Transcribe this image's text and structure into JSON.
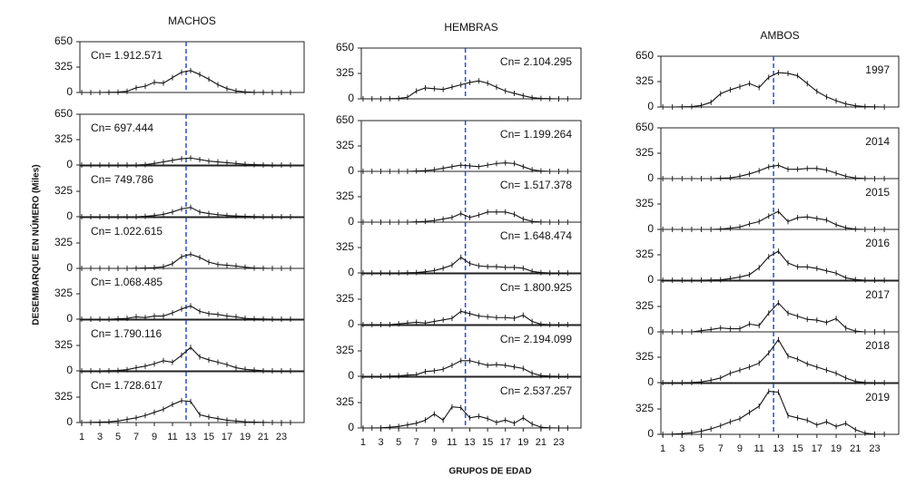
{
  "y_label": "DESEMBARQUE EN NÚMERO (Miles)",
  "x_label": "GRUPOS DE EDAD",
  "chart_data": [
    {
      "type": "line",
      "title": "MACHOS",
      "annotation": "Cn= 1.912.571",
      "x": [
        1,
        2,
        3,
        4,
        5,
        6,
        7,
        8,
        9,
        10,
        11,
        12,
        13,
        14,
        15,
        16,
        17,
        18,
        19,
        20,
        21,
        22,
        23,
        24
      ],
      "values": [
        0,
        0,
        0,
        2,
        5,
        15,
        60,
        80,
        130,
        120,
        190,
        260,
        280,
        230,
        170,
        100,
        50,
        20,
        8,
        3,
        1,
        0,
        0,
        0
      ],
      "xlim": [
        0.8,
        25.5
      ],
      "ylim": [
        0,
        650
      ],
      "yticks": [
        0,
        325,
        650
      ],
      "vline": 12.5
    },
    {
      "type": "line",
      "annotation": "Cn= 697.444",
      "x": [
        1,
        2,
        3,
        4,
        5,
        6,
        7,
        8,
        9,
        10,
        11,
        12,
        13,
        14,
        15,
        16,
        17,
        18,
        19,
        20,
        21,
        22,
        23,
        24
      ],
      "values": [
        0,
        0,
        0,
        0,
        0,
        0,
        0,
        5,
        20,
        40,
        60,
        80,
        90,
        70,
        50,
        40,
        30,
        20,
        10,
        5,
        2,
        0,
        0,
        0
      ],
      "xlim": [
        0.8,
        25.5
      ],
      "ylim": [
        0,
        650
      ],
      "yticks": [
        0,
        325,
        650
      ],
      "vline": 12.5
    },
    {
      "type": "line",
      "annotation": "Cn= 749.786",
      "x": [
        1,
        2,
        3,
        4,
        5,
        6,
        7,
        8,
        9,
        10,
        11,
        12,
        13,
        14,
        15,
        16,
        17,
        18,
        19,
        20,
        21,
        22,
        23,
        24
      ],
      "values": [
        0,
        0,
        0,
        0,
        0,
        0,
        0,
        5,
        15,
        30,
        60,
        100,
        120,
        60,
        40,
        25,
        15,
        10,
        5,
        2,
        0,
        0,
        0,
        0
      ],
      "xlim": [
        0.8,
        25.5
      ],
      "ylim": [
        0,
        650
      ],
      "yticks": [
        0,
        325
      ],
      "vline": 12.5
    },
    {
      "type": "line",
      "annotation": "Cn= 1.022.615",
      "x": [
        1,
        2,
        3,
        4,
        5,
        6,
        7,
        8,
        9,
        10,
        11,
        12,
        13,
        14,
        15,
        16,
        17,
        18,
        19,
        20,
        21,
        22,
        23,
        24
      ],
      "values": [
        0,
        0,
        0,
        0,
        0,
        0,
        2,
        5,
        10,
        20,
        60,
        150,
        180,
        140,
        80,
        50,
        40,
        30,
        15,
        5,
        2,
        0,
        0,
        0
      ],
      "xlim": [
        0.8,
        25.5
      ],
      "ylim": [
        0,
        650
      ],
      "yticks": [
        0,
        325
      ],
      "vline": 12.5
    },
    {
      "type": "line",
      "annotation": "Cn= 1.068.485",
      "x": [
        1,
        2,
        3,
        4,
        5,
        6,
        7,
        8,
        9,
        10,
        11,
        12,
        13,
        14,
        15,
        16,
        17,
        18,
        19,
        20,
        21,
        22,
        23,
        24
      ],
      "values": [
        0,
        0,
        0,
        0,
        5,
        10,
        30,
        20,
        40,
        40,
        80,
        130,
        170,
        100,
        70,
        60,
        40,
        30,
        10,
        5,
        2,
        0,
        0,
        0
      ],
      "xlim": [
        0.8,
        25.5
      ],
      "ylim": [
        0,
        650
      ],
      "yticks": [
        0,
        325
      ],
      "vline": 12.5
    },
    {
      "type": "line",
      "annotation": "Cn= 1.790.116",
      "x": [
        1,
        2,
        3,
        4,
        5,
        6,
        7,
        8,
        9,
        10,
        11,
        12,
        13,
        14,
        15,
        16,
        17,
        18,
        19,
        20,
        21,
        22,
        23,
        24
      ],
      "values": [
        0,
        0,
        0,
        2,
        5,
        15,
        40,
        60,
        90,
        130,
        110,
        200,
        300,
        180,
        140,
        110,
        80,
        40,
        20,
        10,
        2,
        0,
        0,
        0
      ],
      "xlim": [
        0.8,
        25.5
      ],
      "ylim": [
        0,
        650
      ],
      "yticks": [
        0,
        325
      ],
      "vline": 12.5
    },
    {
      "type": "line",
      "annotation": "Cn= 1.728.617",
      "x": [
        1,
        2,
        3,
        4,
        5,
        6,
        7,
        8,
        9,
        10,
        11,
        12,
        13,
        14,
        15,
        16,
        17,
        18,
        19,
        20,
        21,
        22,
        23,
        24
      ],
      "values": [
        0,
        2,
        5,
        10,
        20,
        40,
        60,
        90,
        130,
        170,
        230,
        280,
        270,
        100,
        70,
        50,
        30,
        20,
        10,
        5,
        2,
        0,
        0,
        0
      ],
      "xlim": [
        0.8,
        25.5
      ],
      "ylim": [
        0,
        650
      ],
      "yticks": [
        0,
        325
      ],
      "xticks": [
        1,
        3,
        5,
        7,
        9,
        11,
        13,
        15,
        17,
        19,
        21,
        23
      ],
      "vline": 12.5
    },
    {
      "type": "line",
      "title": "HEMBRAS",
      "annotation": "Cn= 2.104.295",
      "x": [
        1,
        2,
        3,
        4,
        5,
        6,
        7,
        8,
        9,
        10,
        11,
        12,
        13,
        14,
        15,
        16,
        17,
        18,
        19,
        20,
        21,
        22,
        23,
        24
      ],
      "values": [
        0,
        0,
        0,
        2,
        5,
        20,
        100,
        140,
        130,
        120,
        150,
        180,
        210,
        230,
        200,
        150,
        100,
        70,
        40,
        15,
        5,
        2,
        0,
        0
      ],
      "xlim": [
        0.8,
        25.5
      ],
      "ylim": [
        0,
        650
      ],
      "yticks": [
        0,
        325,
        650
      ],
      "vline": 12.5
    },
    {
      "type": "line",
      "annotation": "Cn= 1.199.264",
      "x": [
        1,
        2,
        3,
        4,
        5,
        6,
        7,
        8,
        9,
        10,
        11,
        12,
        13,
        14,
        15,
        16,
        17,
        18,
        19,
        20,
        21,
        22,
        23,
        24
      ],
      "values": [
        0,
        0,
        0,
        0,
        0,
        0,
        5,
        10,
        20,
        40,
        60,
        80,
        70,
        60,
        80,
        100,
        110,
        100,
        60,
        20,
        5,
        0,
        0,
        0
      ],
      "xlim": [
        0.8,
        25.5
      ],
      "ylim": [
        0,
        650
      ],
      "yticks": [
        0,
        325,
        650
      ],
      "vline": 12.5
    },
    {
      "type": "line",
      "annotation": "Cn= 1.517.378",
      "x": [
        1,
        2,
        3,
        4,
        5,
        6,
        7,
        8,
        9,
        10,
        11,
        12,
        13,
        14,
        15,
        16,
        17,
        18,
        19,
        20,
        21,
        22,
        23,
        24
      ],
      "values": [
        0,
        0,
        0,
        0,
        0,
        0,
        5,
        10,
        20,
        40,
        60,
        110,
        60,
        90,
        130,
        130,
        130,
        100,
        40,
        10,
        2,
        0,
        0,
        0
      ],
      "xlim": [
        0.8,
        25.5
      ],
      "ylim": [
        0,
        650
      ],
      "yticks": [
        0,
        325
      ],
      "vline": 12.5
    },
    {
      "type": "line",
      "annotation": "Cn= 1.648.474",
      "x": [
        1,
        2,
        3,
        4,
        5,
        6,
        7,
        8,
        9,
        10,
        11,
        12,
        13,
        14,
        15,
        16,
        17,
        18,
        19,
        20,
        21,
        22,
        23,
        24
      ],
      "values": [
        0,
        0,
        0,
        0,
        0,
        2,
        5,
        15,
        30,
        60,
        100,
        200,
        120,
        90,
        80,
        80,
        70,
        70,
        60,
        20,
        5,
        0,
        0,
        0
      ],
      "xlim": [
        0.8,
        25.5
      ],
      "ylim": [
        0,
        650
      ],
      "yticks": [
        0,
        325
      ],
      "vline": 12.5
    },
    {
      "type": "line",
      "annotation": "Cn= 1.800.925",
      "x": [
        1,
        2,
        3,
        4,
        5,
        6,
        7,
        8,
        9,
        10,
        11,
        12,
        13,
        14,
        15,
        16,
        17,
        18,
        19,
        20,
        21,
        22,
        23,
        24
      ],
      "values": [
        0,
        0,
        0,
        0,
        10,
        20,
        30,
        20,
        40,
        60,
        80,
        170,
        140,
        110,
        100,
        90,
        90,
        80,
        120,
        40,
        5,
        0,
        0,
        0
      ],
      "xlim": [
        0.8,
        25.5
      ],
      "ylim": [
        0,
        650
      ],
      "yticks": [
        0,
        325
      ],
      "vline": 12.5
    },
    {
      "type": "line",
      "annotation": "Cn= 2.194.099",
      "x": [
        1,
        2,
        3,
        4,
        5,
        6,
        7,
        8,
        9,
        10,
        11,
        12,
        13,
        14,
        15,
        16,
        17,
        18,
        19,
        20,
        21,
        22,
        23,
        24
      ],
      "values": [
        0,
        0,
        0,
        2,
        5,
        15,
        20,
        60,
        70,
        90,
        140,
        200,
        200,
        170,
        140,
        150,
        140,
        120,
        100,
        40,
        10,
        2,
        0,
        0
      ],
      "xlim": [
        0.8,
        25.5
      ],
      "ylim": [
        0,
        650
      ],
      "yticks": [
        0,
        325
      ],
      "vline": 12.5
    },
    {
      "type": "line",
      "annotation": "Cn= 2.537.257",
      "x": [
        1,
        2,
        3,
        4,
        5,
        6,
        7,
        8,
        9,
        10,
        11,
        12,
        13,
        14,
        15,
        16,
        17,
        18,
        19,
        20,
        21,
        22,
        23,
        24
      ],
      "values": [
        0,
        0,
        2,
        10,
        20,
        40,
        60,
        100,
        180,
        100,
        270,
        260,
        130,
        150,
        120,
        70,
        100,
        60,
        130,
        50,
        10,
        2,
        0,
        0
      ],
      "xlim": [
        0.8,
        25.5
      ],
      "ylim": [
        0,
        650
      ],
      "yticks": [
        0,
        325
      ],
      "xticks": [
        1,
        3,
        5,
        7,
        9,
        11,
        13,
        15,
        17,
        19,
        21,
        23
      ],
      "vline": 12.5
    },
    {
      "type": "line",
      "title": "AMBOS",
      "annotation": "1997",
      "x": [
        1,
        2,
        3,
        4,
        5,
        6,
        7,
        8,
        9,
        10,
        11,
        12,
        13,
        14,
        15,
        16,
        17,
        18,
        19,
        20,
        21,
        22,
        23,
        24
      ],
      "values": [
        0,
        0,
        2,
        5,
        20,
        60,
        170,
        220,
        260,
        300,
        250,
        380,
        440,
        430,
        400,
        300,
        200,
        130,
        80,
        40,
        15,
        5,
        2,
        0
      ],
      "xlim": [
        0.8,
        25.5
      ],
      "ylim": [
        0,
        650
      ],
      "yticks": [
        0,
        325,
        650
      ],
      "vline": 12.5
    },
    {
      "type": "line",
      "annotation": "2014",
      "x": [
        1,
        2,
        3,
        4,
        5,
        6,
        7,
        8,
        9,
        10,
        11,
        12,
        13,
        14,
        15,
        16,
        17,
        18,
        19,
        20,
        21,
        22,
        23,
        24
      ],
      "values": [
        0,
        0,
        0,
        0,
        0,
        0,
        5,
        10,
        30,
        60,
        100,
        150,
        170,
        120,
        120,
        130,
        130,
        110,
        70,
        30,
        8,
        2,
        0,
        0
      ],
      "xlim": [
        0.8,
        25.5
      ],
      "ylim": [
        0,
        650
      ],
      "yticks": [
        0,
        325,
        650
      ],
      "vline": 12.5
    },
    {
      "type": "line",
      "annotation": "2015",
      "x": [
        1,
        2,
        3,
        4,
        5,
        6,
        7,
        8,
        9,
        10,
        11,
        12,
        13,
        14,
        15,
        16,
        17,
        18,
        19,
        20,
        21,
        22,
        23,
        24
      ],
      "values": [
        0,
        0,
        0,
        0,
        0,
        0,
        5,
        15,
        30,
        70,
        100,
        170,
        230,
        100,
        150,
        160,
        140,
        120,
        60,
        20,
        5,
        0,
        0,
        0
      ],
      "xlim": [
        0.8,
        25.5
      ],
      "ylim": [
        0,
        650
      ],
      "yticks": [
        0,
        325
      ],
      "vline": 12.5
    },
    {
      "type": "line",
      "annotation": "2016",
      "x": [
        1,
        2,
        3,
        4,
        5,
        6,
        7,
        8,
        9,
        10,
        11,
        12,
        13,
        14,
        15,
        16,
        17,
        18,
        19,
        20,
        21,
        22,
        23,
        24
      ],
      "values": [
        0,
        0,
        0,
        0,
        0,
        2,
        5,
        20,
        40,
        70,
        160,
        300,
        370,
        220,
        170,
        170,
        150,
        120,
        90,
        30,
        8,
        0,
        0,
        0
      ],
      "xlim": [
        0.8,
        25.5
      ],
      "ylim": [
        0,
        650
      ],
      "yticks": [
        0,
        325
      ],
      "vline": 12.5
    },
    {
      "type": "line",
      "annotation": "2017",
      "x": [
        1,
        2,
        3,
        4,
        5,
        6,
        7,
        8,
        9,
        10,
        11,
        12,
        13,
        14,
        15,
        16,
        17,
        18,
        19,
        20,
        21,
        22,
        23,
        24
      ],
      "values": [
        0,
        0,
        0,
        0,
        15,
        30,
        50,
        40,
        40,
        100,
        80,
        240,
        370,
        240,
        200,
        160,
        150,
        120,
        170,
        50,
        10,
        0,
        0,
        0
      ],
      "xlim": [
        0.8,
        25.5
      ],
      "ylim": [
        0,
        650
      ],
      "yticks": [
        0,
        325
      ],
      "vline": 12.5
    },
    {
      "type": "line",
      "annotation": "2018",
      "x": [
        1,
        2,
        3,
        4,
        5,
        6,
        7,
        8,
        9,
        10,
        11,
        12,
        13,
        14,
        15,
        16,
        17,
        18,
        19,
        20,
        21,
        22,
        23,
        24
      ],
      "values": [
        0,
        0,
        0,
        2,
        10,
        30,
        60,
        120,
        160,
        200,
        250,
        380,
        550,
        340,
        300,
        240,
        200,
        160,
        120,
        60,
        15,
        2,
        0,
        0
      ],
      "xlim": [
        0.8,
        25.5
      ],
      "ylim": [
        0,
        650
      ],
      "yticks": [
        0,
        325
      ],
      "vline": 12.5
    },
    {
      "type": "line",
      "annotation": "2019",
      "x": [
        1,
        2,
        3,
        4,
        5,
        6,
        7,
        8,
        9,
        10,
        11,
        12,
        13,
        14,
        15,
        16,
        17,
        18,
        19,
        20,
        21,
        22,
        23,
        24
      ],
      "values": [
        0,
        2,
        10,
        20,
        40,
        70,
        110,
        160,
        200,
        280,
        360,
        550,
        540,
        240,
        210,
        180,
        120,
        160,
        100,
        140,
        60,
        15,
        2,
        0
      ],
      "xlim": [
        0.8,
        25.5
      ],
      "ylim": [
        0,
        650
      ],
      "yticks": [
        0,
        325
      ],
      "xticks": [
        1,
        3,
        5,
        7,
        9,
        11,
        13,
        15,
        17,
        19,
        21,
        23
      ],
      "vline": 12.5
    }
  ]
}
